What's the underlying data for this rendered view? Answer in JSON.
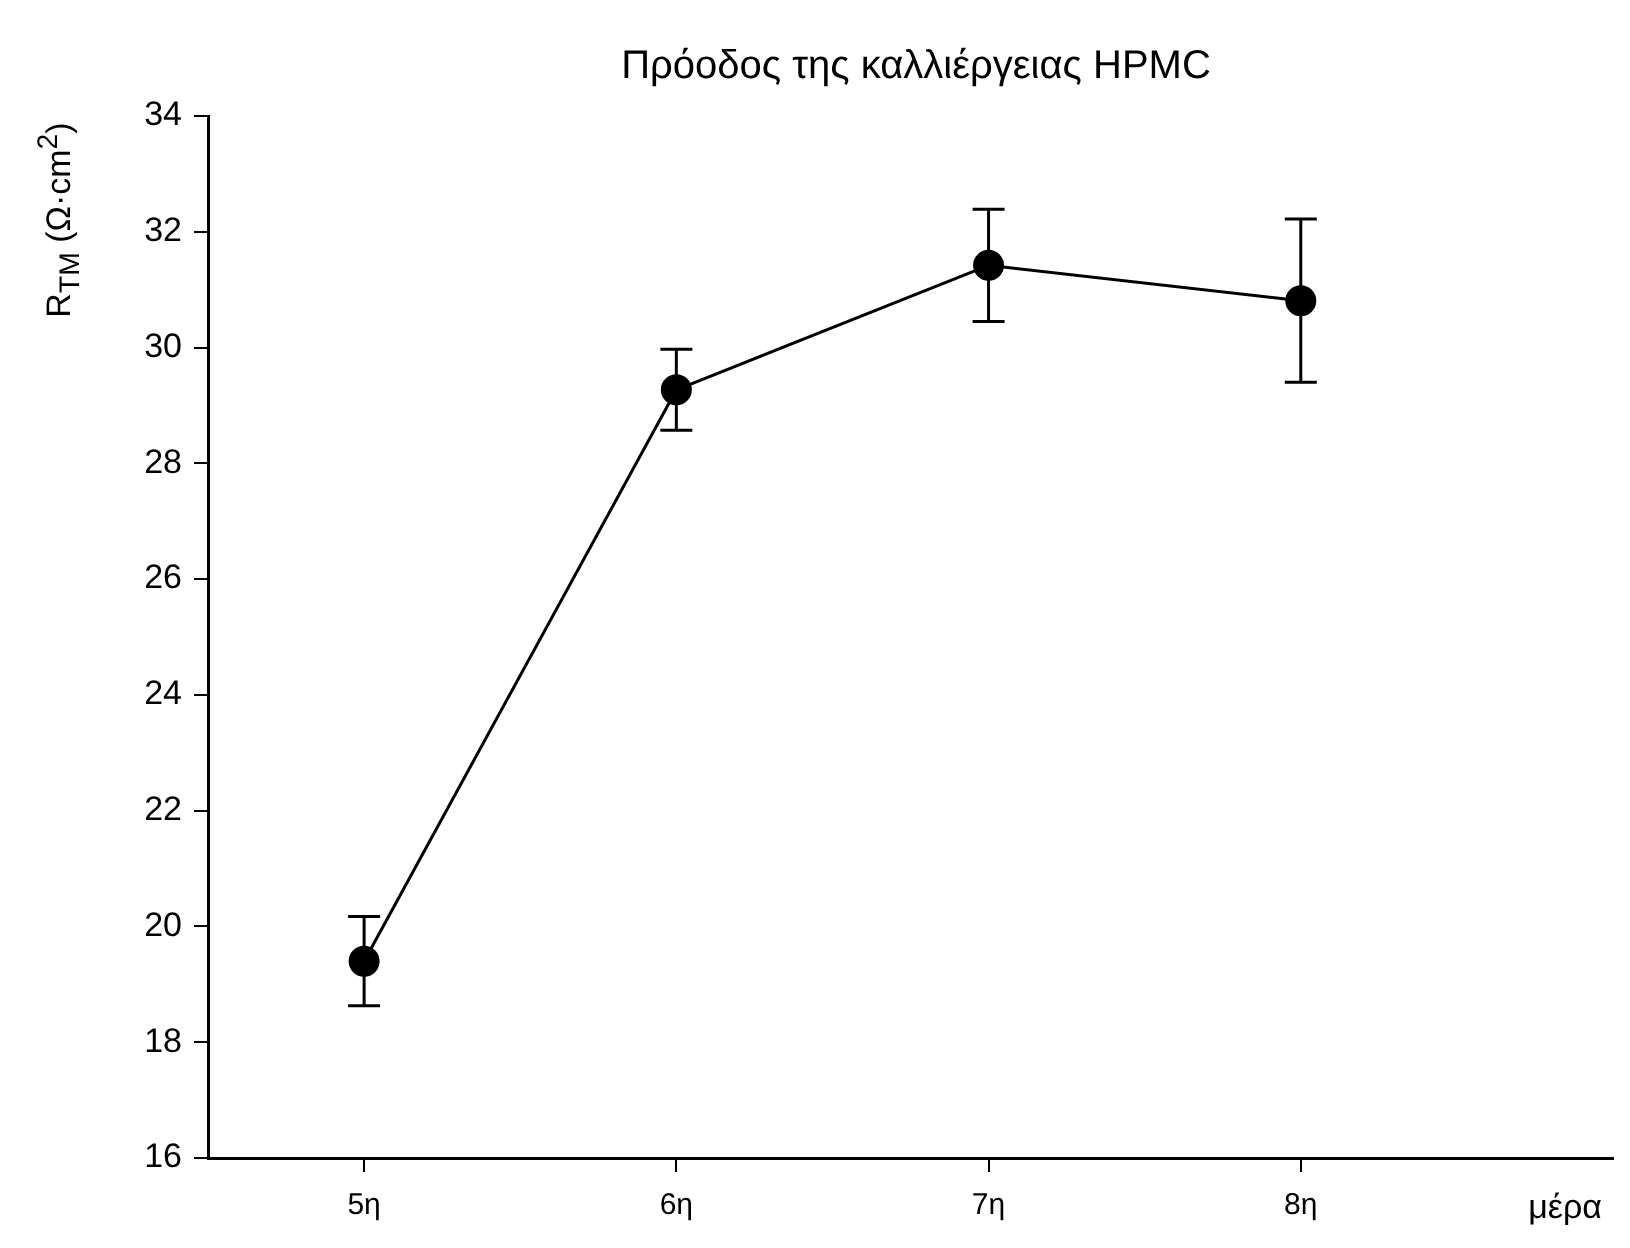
{
  "chart_data": {
    "type": "line",
    "title": "Πρόοδος της καλλιέργειας HPMC",
    "xlabel": "μέρα",
    "ylabel": "R$_{TM}$ (Ω·cm$^{2}$)",
    "categories": [
      "5η",
      "6η",
      "7η",
      "8η"
    ],
    "series": [
      {
        "color": "#000000",
        "values": [
          19.4,
          29.27,
          31.42,
          30.81
        ],
        "errors": [
          0.77,
          0.7,
          0.97,
          1.41
        ]
      }
    ],
    "ylim": [
      16,
      34
    ],
    "yticks": [
      16,
      18,
      20,
      22,
      24,
      26,
      28,
      30,
      32,
      34
    ],
    "grid": false,
    "legend": false,
    "marker": "circle",
    "line_style": "solid"
  }
}
